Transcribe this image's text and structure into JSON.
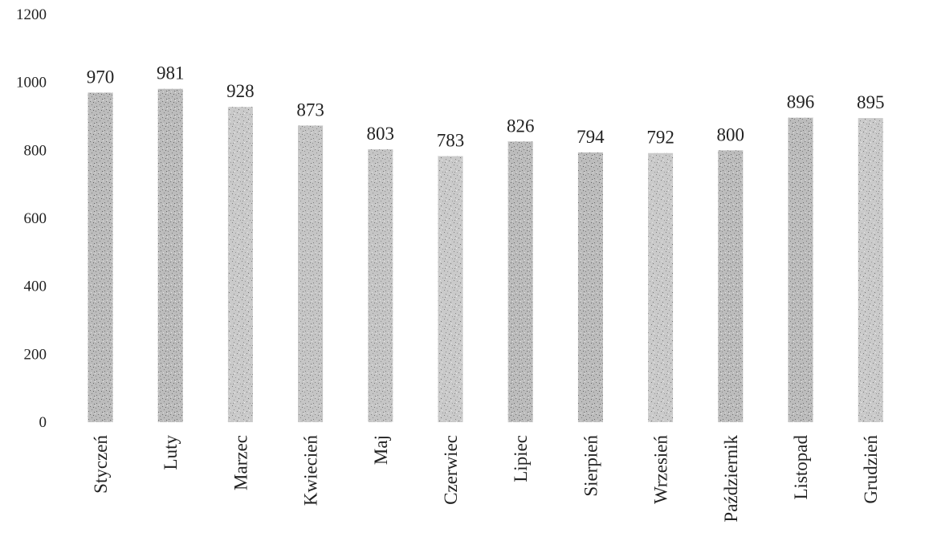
{
  "chart_data": {
    "type": "bar",
    "title": "",
    "xlabel": "",
    "ylabel": "",
    "categories": [
      "Styczeń",
      "Luty",
      "Marzec",
      "Kwiecień",
      "Maj",
      "Czerwiec",
      "Lipiec",
      "Sierpień",
      "Wrzesień",
      "Październik",
      "Listopad",
      "Grudzień"
    ],
    "values": [
      970,
      981,
      928,
      873,
      803,
      783,
      826,
      794,
      792,
      800,
      896,
      895
    ],
    "value_labels": [
      "970",
      "981",
      "928",
      "873",
      "803",
      "783",
      "826",
      "794",
      "792",
      "800",
      "896",
      "895"
    ],
    "ylim": [
      0,
      1200
    ],
    "yticks": [
      0,
      200,
      400,
      600,
      800,
      1000,
      1200
    ],
    "ytick_labels": [
      "0",
      "200",
      "400",
      "600",
      "800",
      "1000",
      "1200"
    ],
    "grid": false,
    "legend": "none",
    "bar_color": "#9a9a9a",
    "text_color": "#222222"
  }
}
